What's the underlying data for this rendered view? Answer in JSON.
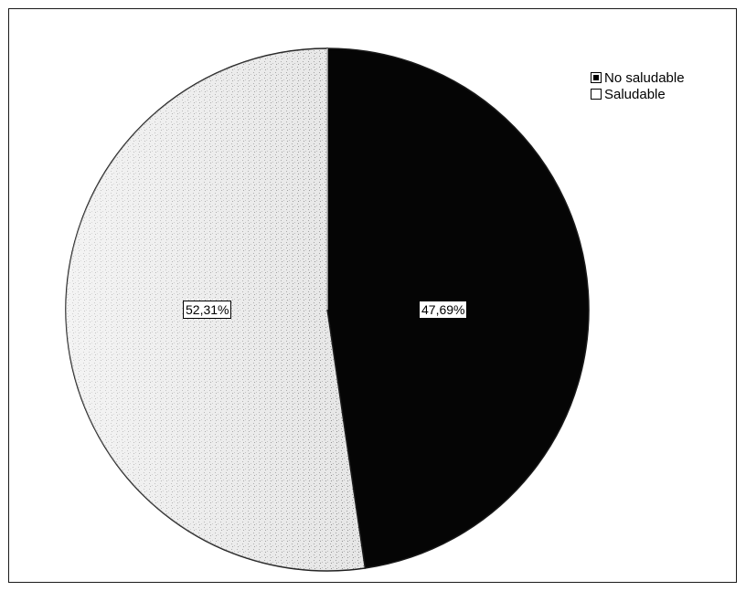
{
  "chart_data": {
    "type": "pie",
    "slices": [
      {
        "label": "No saludable",
        "value": 47.69,
        "data_label": "47,69%",
        "color": "#050505"
      },
      {
        "label": "Saludable",
        "value": 52.31,
        "data_label": "52,31%",
        "color": "#d9d9d9"
      }
    ],
    "legend": {
      "placement": "top-right",
      "entries": [
        "No saludable",
        "Saludable"
      ]
    },
    "start_angle_deg": 0,
    "direction": "clockwise"
  }
}
